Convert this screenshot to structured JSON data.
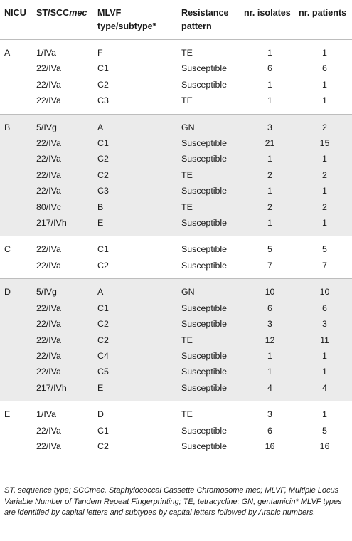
{
  "table": {
    "headers": {
      "nicu": "NICU",
      "st_a": "ST/SCC",
      "st_b": "mec",
      "mlvf_1": "MLVF",
      "mlvf_2": "type/subtype*",
      "res_1": "Resistance",
      "res_2": "pattern",
      "isolates": "nr. isolates",
      "patients": "nr. patients"
    },
    "groups": [
      {
        "nicu": "A",
        "rows": [
          {
            "st": "1/IVa",
            "mlvf": "F",
            "res": "TE",
            "iso": "1",
            "pat": "1"
          },
          {
            "st": "22/IVa",
            "mlvf": "C1",
            "res": "Susceptible",
            "iso": "6",
            "pat": "6"
          },
          {
            "st": "22/IVa",
            "mlvf": "C2",
            "res": "Susceptible",
            "iso": "1",
            "pat": "1"
          },
          {
            "st": "22/IVa",
            "mlvf": "C3",
            "res": "TE",
            "iso": "1",
            "pat": "1"
          }
        ]
      },
      {
        "nicu": "B",
        "rows": [
          {
            "st": "5/IVg",
            "mlvf": "A",
            "res": "GN",
            "iso": "3",
            "pat": "2"
          },
          {
            "st": "22/IVa",
            "mlvf": "C1",
            "res": "Susceptible",
            "iso": "21",
            "pat": "15"
          },
          {
            "st": "22/IVa",
            "mlvf": "C2",
            "res": "Susceptible",
            "iso": "1",
            "pat": "1"
          },
          {
            "st": "22/IVa",
            "mlvf": "C2",
            "res": "TE",
            "iso": "2",
            "pat": "2"
          },
          {
            "st": "22/IVa",
            "mlvf": "C3",
            "res": "Susceptible",
            "iso": "1",
            "pat": "1"
          },
          {
            "st": "80/IVc",
            "mlvf": "B",
            "res": "TE",
            "iso": "2",
            "pat": "2"
          },
          {
            "st": "217/IVh",
            "mlvf": "E",
            "res": "Susceptible",
            "iso": "1",
            "pat": "1"
          }
        ]
      },
      {
        "nicu": "C",
        "rows": [
          {
            "st": "22/IVa",
            "mlvf": "C1",
            "res": "Susceptible",
            "iso": "5",
            "pat": "5"
          },
          {
            "st": "22/IVa",
            "mlvf": "C2",
            "res": "Susceptible",
            "iso": "7",
            "pat": "7"
          }
        ]
      },
      {
        "nicu": "D",
        "rows": [
          {
            "st": "5/IVg",
            "mlvf": "A",
            "res": "GN",
            "iso": "10",
            "pat": "10"
          },
          {
            "st": "22/IVa",
            "mlvf": "C1",
            "res": "Susceptible",
            "iso": "6",
            "pat": "6"
          },
          {
            "st": "22/IVa",
            "mlvf": "C2",
            "res": "Susceptible",
            "iso": "3",
            "pat": "3"
          },
          {
            "st": "22/IVa",
            "mlvf": "C2",
            "res": "TE",
            "iso": "12",
            "pat": "11"
          },
          {
            "st": "22/IVa",
            "mlvf": "C4",
            "res": "Susceptible",
            "iso": "1",
            "pat": "1"
          },
          {
            "st": "22/IVa",
            "mlvf": "C5",
            "res": "Susceptible",
            "iso": "1",
            "pat": "1"
          },
          {
            "st": "217/IVh",
            "mlvf": "E",
            "res": "Susceptible",
            "iso": "4",
            "pat": "4"
          }
        ]
      },
      {
        "nicu": "E",
        "rows": [
          {
            "st": "1/IVa",
            "mlvf": "D",
            "res": "TE",
            "iso": "3",
            "pat": "1"
          },
          {
            "st": "22/IVa",
            "mlvf": "C1",
            "res": "Susceptible",
            "iso": "6",
            "pat": "5"
          },
          {
            "st": "22/IVa",
            "mlvf": "C2",
            "res": "Susceptible",
            "iso": "16",
            "pat": "16"
          }
        ]
      }
    ]
  },
  "footnote": "ST, sequence type; SCCmec, Staphylococcal Cassette Chromosome mec; MLVF, Multiple Locus Variable Number of Tandem Repeat Fingerprinting; TE, tetracycline; GN, gentamicin* MLVF types are identified by capital letters and subtypes by capital letters followed by Arabic numbers."
}
